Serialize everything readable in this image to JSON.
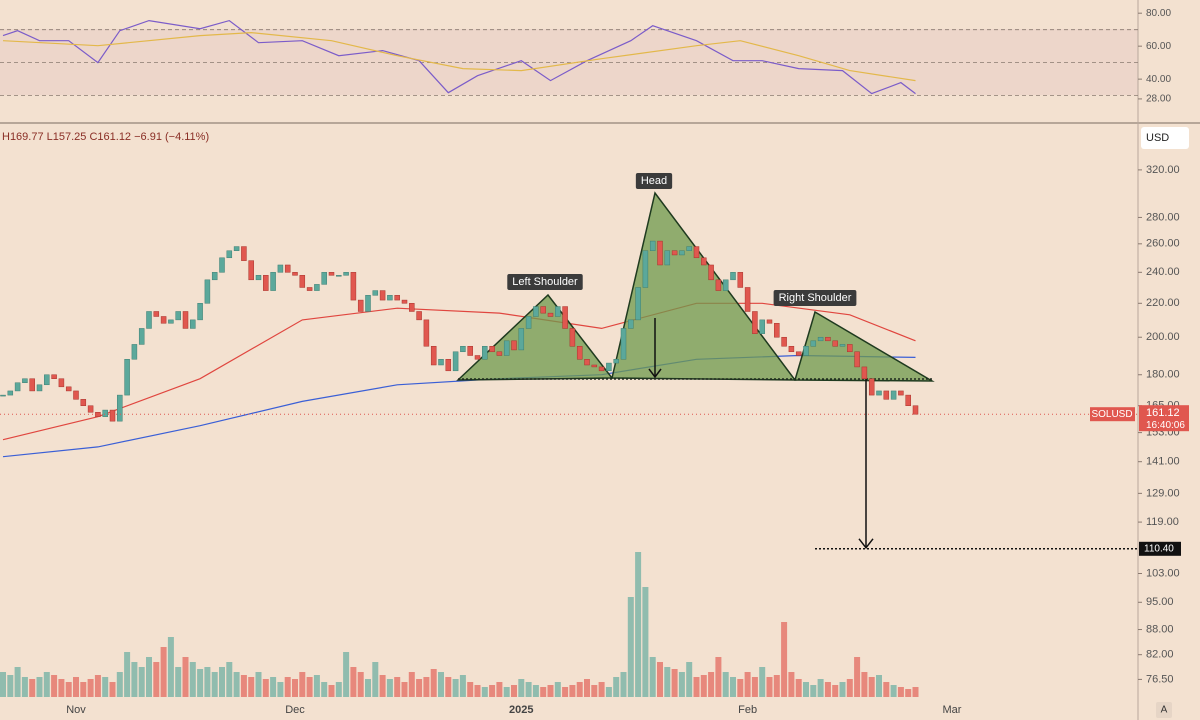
{
  "chart_data": {
    "type": "candlestick",
    "header": "H169.77 L157.25 C161.12 −6.91 (−4.11%)",
    "currency": "USD",
    "symbol": "SOLUSD",
    "clock": "16:40:06",
    "annotations": [
      "Left Shoulder",
      "Head",
      "Right Shoulder"
    ],
    "target": {
      "value": 110.4,
      "label": "110.40"
    },
    "close": [
      170,
      172,
      176,
      178,
      172,
      175,
      180,
      178,
      174,
      172,
      168,
      165,
      162,
      160,
      163,
      158,
      170,
      188,
      196,
      205,
      215,
      212,
      208,
      210,
      215,
      205,
      210,
      220,
      235,
      240,
      250,
      255,
      258,
      248,
      235,
      238,
      228,
      240,
      245,
      240,
      238,
      230,
      228,
      232,
      240,
      238,
      238,
      240,
      222,
      215,
      225,
      228,
      222,
      225,
      222,
      220,
      215,
      210,
      195,
      185,
      188,
      182,
      192,
      195,
      190,
      188,
      195,
      192,
      190,
      198,
      193,
      205,
      212,
      218,
      214,
      212,
      218,
      205,
      195,
      188,
      185,
      184,
      182,
      186,
      188,
      205,
      210,
      230,
      255,
      262,
      245,
      255,
      252,
      255,
      258,
      250,
      245,
      235,
      228,
      235,
      240,
      230,
      215,
      202,
      210,
      208,
      200,
      195,
      192,
      190,
      195,
      198,
      200,
      198,
      195,
      196,
      192,
      184,
      178,
      170,
      172,
      168,
      172,
      170,
      165,
      161.12
    ],
    "volume": [
      25,
      22,
      30,
      20,
      18,
      20,
      25,
      22,
      18,
      15,
      20,
      15,
      18,
      22,
      20,
      15,
      25,
      45,
      35,
      30,
      40,
      35,
      50,
      60,
      30,
      40,
      35,
      28,
      30,
      25,
      30,
      35,
      25,
      22,
      20,
      25,
      18,
      20,
      15,
      20,
      18,
      25,
      20,
      22,
      15,
      12,
      15,
      45,
      30,
      25,
      18,
      35,
      22,
      18,
      20,
      15,
      25,
      18,
      20,
      28,
      25,
      20,
      18,
      22,
      15,
      12,
      10,
      12,
      15,
      10,
      12,
      18,
      15,
      12,
      10,
      12,
      15,
      10,
      12,
      15,
      18,
      12,
      15,
      10,
      20,
      25,
      100,
      145,
      110,
      40,
      35,
      30,
      28,
      25,
      35,
      20,
      22,
      25,
      40,
      25,
      20,
      18,
      25,
      20,
      30,
      20,
      22,
      75,
      25,
      18,
      15,
      12,
      18,
      15,
      12,
      15,
      18,
      40,
      25,
      20,
      22,
      15,
      12,
      10,
      8,
      10
    ],
    "ma_fast": {
      "color": "#e0463f",
      "x": [
        0,
        13,
        27,
        41,
        54,
        68,
        82,
        95,
        104,
        116,
        125
      ],
      "values": [
        150,
        160,
        178,
        210,
        217,
        214,
        205,
        220,
        220,
        213,
        198
      ]
    },
    "ma_slow": {
      "color": "#3a5fd6",
      "x": [
        0,
        13,
        27,
        41,
        54,
        68,
        82,
        95,
        109,
        125
      ],
      "values": [
        143,
        147,
        156,
        167,
        175,
        178,
        180,
        188,
        190,
        189
      ]
    },
    "log_scale": true,
    "ylim": [
      72.2,
      363
    ],
    "yticks": [
      {
        "value": 320,
        "label": "320.00"
      },
      {
        "value": 280,
        "label": "280.00"
      },
      {
        "value": 260,
        "label": "260.00"
      },
      {
        "value": 240,
        "label": "240.00"
      },
      {
        "value": 220,
        "label": "220.00"
      },
      {
        "value": 200,
        "label": "200.00"
      },
      {
        "value": 180,
        "label": "180.00"
      },
      {
        "value": 165,
        "label": "165.00"
      },
      {
        "value": 153,
        "label": "153.00"
      },
      {
        "value": 141,
        "label": "141.00"
      },
      {
        "value": 129,
        "label": "129.00"
      },
      {
        "value": 119,
        "label": "119.00"
      },
      {
        "value": 103,
        "label": "103.00"
      },
      {
        "value": 95,
        "label": "95.00"
      },
      {
        "value": 88,
        "label": "88.00"
      },
      {
        "value": 82,
        "label": "82.00"
      },
      {
        "value": 76.5,
        "label": "76.50"
      }
    ],
    "xticks": [
      {
        "value": 10,
        "label": "Nov"
      },
      {
        "value": 40,
        "label": "Dec"
      },
      {
        "value": 71,
        "label": "2025"
      },
      {
        "value": 102,
        "label": "Feb"
      },
      {
        "value": 130,
        "label": "Mar"
      }
    ],
    "up_color": "#5ba89b",
    "down_color": "#e0574f",
    "rsi": {
      "ylim": [
        14,
        88
      ],
      "yticks": [
        {
          "value": 80,
          "label": "80.00"
        },
        {
          "value": 60,
          "label": "60.00"
        },
        {
          "value": 40,
          "label": "40.00"
        },
        {
          "value": 28,
          "label": "28.00"
        }
      ],
      "levels": [
        70,
        50,
        30
      ],
      "series": [
        {
          "color": "#7b5cc9",
          "x": [
            0,
            2,
            5,
            9,
            13,
            16,
            20,
            27,
            31,
            35,
            41,
            46,
            52,
            57,
            61,
            65,
            71,
            75,
            80,
            86,
            89,
            95,
            100,
            104,
            109,
            115,
            119,
            123,
            125
          ],
          "values": [
            66.4,
            69.4,
            63.3,
            63.3,
            50,
            69.4,
            75.5,
            70.6,
            75.5,
            62.1,
            63.3,
            54.2,
            57.3,
            51.2,
            31.8,
            42.1,
            51.2,
            39.1,
            51.2,
            63.3,
            72.4,
            63.3,
            51.2,
            51.2,
            46.4,
            45.2,
            31.2,
            37.9,
            31.2
          ]
        },
        {
          "color": "#e3b84a",
          "x": [
            0,
            13,
            27,
            34,
            45,
            54,
            63,
            71,
            82,
            95,
            101,
            109,
            116,
            125
          ],
          "values": [
            63.3,
            60.3,
            66.4,
            68.2,
            63.3,
            54.2,
            46.4,
            45.2,
            52.4,
            60.3,
            63.3,
            54.2,
            45.2,
            39.1
          ]
        }
      ]
    }
  }
}
